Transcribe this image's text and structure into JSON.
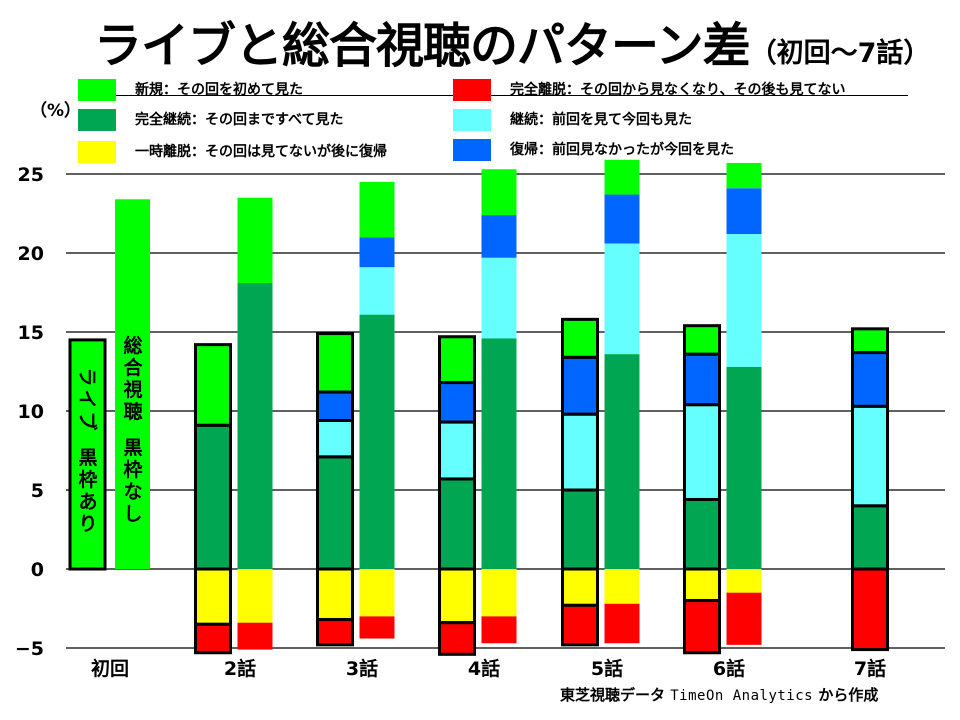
{
  "title": {
    "main": "ライブと総合視聴のパターン差",
    "sub": "（初回～7話）"
  },
  "unit_label": "（%）",
  "legend": [
    {
      "key": "new",
      "label": "新規：その回を初めて見た",
      "color": "#00ff00"
    },
    {
      "key": "complete",
      "label": "完全継続：その回まですべて見た",
      "color": "#00a651"
    },
    {
      "key": "temp_leave",
      "label": "一時離脱：その回は見てないが後に復帰",
      "color": "#ffff00"
    },
    {
      "key": "full_leave",
      "label": "完全離脱：その回から見なくなり、その後も見てない",
      "color": "#ff0000"
    },
    {
      "key": "continue",
      "label": "継続：前回を見て今回も見た",
      "color": "#66ffff"
    },
    {
      "key": "return",
      "label": "復帰：前回見なかったが今回を見た",
      "color": "#0066ff"
    }
  ],
  "caption": {
    "prefix": "東芝視聴データ ",
    "mono": "TimeOn Analytics",
    "suffix": " から作成"
  },
  "chart_data": {
    "type": "bar",
    "stacked": true,
    "title": "ライブと総合視聴のパターン差（初回～7話）",
    "xlabel": "",
    "ylabel": "（%）",
    "ylim": [
      -5,
      25
    ],
    "yticks": [
      25,
      20,
      15,
      10,
      5,
      0,
      -5
    ],
    "grid": true,
    "legend_position": "top",
    "categories": [
      "初回",
      "2話",
      "3話",
      "4話",
      "5話",
      "6話",
      "7話"
    ],
    "bar_annotations": {
      "live": "ライブ　黒枠あり",
      "total": "総合視聴　黒枠なし"
    },
    "stack_order_positive": [
      "complete",
      "continue",
      "return",
      "new"
    ],
    "stack_order_negative": [
      "temp_leave",
      "full_leave"
    ],
    "series": [
      {
        "name": "ライブ",
        "outlined": true,
        "values": [
          {
            "category": "初回",
            "new": 14.5
          },
          {
            "category": "2話",
            "complete": 9.1,
            "new": 5.1,
            "temp_leave": 3.5,
            "full_leave": 1.8
          },
          {
            "category": "3話",
            "complete": 7.1,
            "continue": 2.3,
            "return": 1.8,
            "new": 3.7,
            "temp_leave": 3.2,
            "full_leave": 1.6
          },
          {
            "category": "4話",
            "complete": 5.7,
            "continue": 3.6,
            "return": 2.5,
            "new": 2.9,
            "temp_leave": 3.4,
            "full_leave": 2.0
          },
          {
            "category": "5話",
            "complete": 5.0,
            "continue": 4.8,
            "return": 3.6,
            "new": 2.4,
            "temp_leave": 2.3,
            "full_leave": 2.5
          },
          {
            "category": "6話",
            "complete": 4.4,
            "continue": 6.0,
            "return": 3.2,
            "new": 1.8,
            "temp_leave": 2.0,
            "full_leave": 3.3
          },
          {
            "category": "7話",
            "complete": 4.0,
            "continue": 6.3,
            "return": 3.4,
            "new": 1.5,
            "temp_leave": 0,
            "full_leave": 5.1
          }
        ]
      },
      {
        "name": "総合視聴",
        "outlined": false,
        "values": [
          {
            "category": "初回",
            "new": 23.4
          },
          {
            "category": "2話",
            "complete": 18.1,
            "new": 5.4,
            "temp_leave": 3.4,
            "full_leave": 1.7
          },
          {
            "category": "3話",
            "complete": 16.1,
            "continue": 3.0,
            "return": 1.9,
            "new": 3.5,
            "temp_leave": 3.0,
            "full_leave": 1.4
          },
          {
            "category": "4話",
            "complete": 14.6,
            "continue": 5.1,
            "return": 2.7,
            "new": 2.9,
            "temp_leave": 3.0,
            "full_leave": 1.7
          },
          {
            "category": "5話",
            "complete": 13.6,
            "continue": 7.0,
            "return": 3.1,
            "new": 2.2,
            "temp_leave": 2.2,
            "full_leave": 2.5
          },
          {
            "category": "6話",
            "complete": 12.8,
            "continue": 8.4,
            "return": 2.9,
            "new": 1.6,
            "temp_leave": 1.5,
            "full_leave": 3.3
          }
        ]
      }
    ]
  }
}
